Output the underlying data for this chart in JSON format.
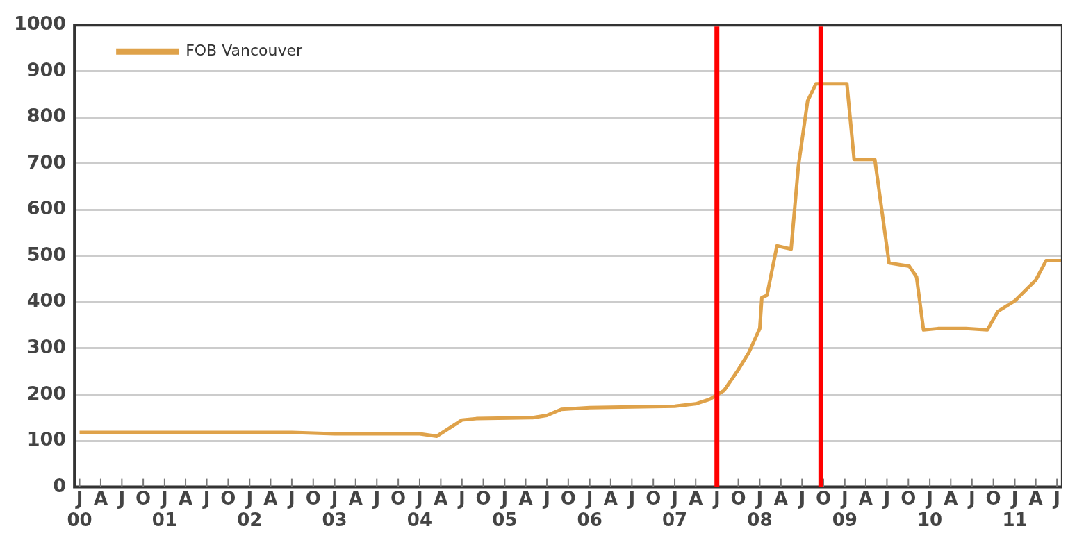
{
  "chart_data": {
    "type": "line",
    "x": [
      "2000-01-01",
      "2002-07-01",
      "2003-01-01",
      "2004-01-01",
      "2004-03-15",
      "2004-07-01",
      "2004-09-01",
      "2005-05-01",
      "2005-07-01",
      "2005-09-01",
      "2006-01-01",
      "2007-01-01",
      "2007-04-01",
      "2007-06-01",
      "2007-08-01",
      "2007-10-01",
      "2007-11-15",
      "2008-01-01",
      "2008-01-10",
      "2008-02-01",
      "2008-03-15",
      "2008-05-15",
      "2008-06-15",
      "2008-07-25",
      "2008-08-30",
      "2009-01-10",
      "2009-02-10",
      "2009-05-10",
      "2009-07-10",
      "2009-10-05",
      "2009-11-05",
      "2009-12-05",
      "2010-02-05",
      "2010-06-05",
      "2010-09-05",
      "2010-10-20",
      "2011-01-01",
      "2011-04-01",
      "2011-05-15",
      "2011-07-20"
    ],
    "series": [
      {
        "name": "FOB Vancouver",
        "color": "#dfa24a",
        "values": [
          118,
          118,
          115,
          115,
          110,
          145,
          148,
          150,
          155,
          168,
          172,
          175,
          180,
          190,
          209,
          254,
          291,
          343,
          410,
          415,
          522,
          515,
          694,
          836,
          873,
          873,
          709,
          709,
          485,
          478,
          455,
          340,
          343,
          343,
          340,
          380,
          403,
          448,
          490,
          490
        ]
      }
    ],
    "xlim": [
      "1999-12-10",
      "2011-07-24"
    ],
    "xticks": [
      {
        "value": "2000-01",
        "label": "J\n00"
      },
      {
        "value": "2000-04",
        "label": "A"
      },
      {
        "value": "2000-07",
        "label": "J"
      },
      {
        "value": "2000-10",
        "label": "O"
      },
      {
        "value": "2001-01",
        "label": "J\n01"
      },
      {
        "value": "2001-04",
        "label": "A"
      },
      {
        "value": "2001-07",
        "label": "J"
      },
      {
        "value": "2001-10",
        "label": "O"
      },
      {
        "value": "2002-01",
        "label": "J\n02"
      },
      {
        "value": "2002-04",
        "label": "A"
      },
      {
        "value": "2002-07",
        "label": "J"
      },
      {
        "value": "2002-10",
        "label": "O"
      },
      {
        "value": "2003-01",
        "label": "J\n03"
      },
      {
        "value": "2003-04",
        "label": "A"
      },
      {
        "value": "2003-07",
        "label": "J"
      },
      {
        "value": "2003-10",
        "label": "O"
      },
      {
        "value": "2004-01",
        "label": "J\n04"
      },
      {
        "value": "2004-04",
        "label": "A"
      },
      {
        "value": "2004-07",
        "label": "J"
      },
      {
        "value": "2004-10",
        "label": "O"
      },
      {
        "value": "2005-01",
        "label": "J\n05"
      },
      {
        "value": "2005-04",
        "label": "A"
      },
      {
        "value": "2005-07",
        "label": "J"
      },
      {
        "value": "2005-10",
        "label": "O"
      },
      {
        "value": "2006-01",
        "label": "J\n06"
      },
      {
        "value": "2006-04",
        "label": "A"
      },
      {
        "value": "2006-07",
        "label": "J"
      },
      {
        "value": "2006-10",
        "label": "O"
      },
      {
        "value": "2007-01",
        "label": "J\n07"
      },
      {
        "value": "2007-04",
        "label": "A"
      },
      {
        "value": "2007-07",
        "label": "J"
      },
      {
        "value": "2007-10",
        "label": "O"
      },
      {
        "value": "2008-01",
        "label": "J\n08"
      },
      {
        "value": "2008-04",
        "label": "A"
      },
      {
        "value": "2008-07",
        "label": "J"
      },
      {
        "value": "2008-10",
        "label": "O"
      },
      {
        "value": "2009-01",
        "label": "J\n09"
      },
      {
        "value": "2009-04",
        "label": "A"
      },
      {
        "value": "2009-07",
        "label": "J"
      },
      {
        "value": "2009-10",
        "label": "O"
      },
      {
        "value": "2010-01",
        "label": "J\n10"
      },
      {
        "value": "2010-04",
        "label": "A"
      },
      {
        "value": "2010-07",
        "label": "J"
      },
      {
        "value": "2010-10",
        "label": "O"
      },
      {
        "value": "2011-01",
        "label": "J\n11"
      },
      {
        "value": "2011-04",
        "label": "A"
      },
      {
        "value": "2011-07",
        "label": "J"
      }
    ],
    "ylim": [
      0,
      1000
    ],
    "yticks": [
      0,
      100,
      200,
      300,
      400,
      500,
      600,
      700,
      800,
      900,
      1000
    ],
    "grid": "y",
    "legend": "top left",
    "marker": "none",
    "line_style": "solid",
    "ref_lines": [
      {
        "axis": "x",
        "value": "2007-07-01",
        "color": "#ff0000"
      },
      {
        "axis": "x",
        "value": "2008-09-20",
        "color": "#ff0000"
      }
    ]
  }
}
